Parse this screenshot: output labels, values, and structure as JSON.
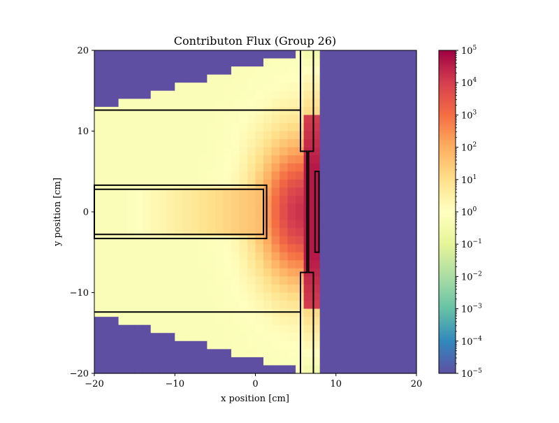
{
  "chart_data": {
    "type": "heatmap",
    "title": "Contributon Flux (Group 26)",
    "xlabel": "x position [cm]",
    "ylabel": "y position [cm]",
    "xlim": [
      -20,
      20
    ],
    "ylim": [
      -20,
      20
    ],
    "x_ticks": [
      -20,
      -10,
      0,
      10,
      20
    ],
    "y_ticks": [
      -20,
      -10,
      0,
      10,
      20
    ],
    "x_tick_labels": [
      "−20",
      "−10",
      "0",
      "10",
      "20"
    ],
    "y_tick_labels": [
      "−20",
      "−10",
      "0",
      "10",
      "20"
    ],
    "grid": "40x40 cells, 1 cm pitch",
    "colormap": "Spectral_r",
    "colormap_stops": [
      "#5e4fa2",
      "#3288bd",
      "#66c2a5",
      "#abdda4",
      "#e6f598",
      "#ffffbf",
      "#fee08b",
      "#fdae61",
      "#f46d43",
      "#d53e4f",
      "#9e0142"
    ],
    "scale": "log",
    "colorbar": {
      "min_exponent": -5,
      "max_exponent": 5,
      "labels": [
        {
          "base": "10",
          "exp": "5",
          "exponent": 5
        },
        {
          "base": "10",
          "exp": "4",
          "exponent": 4
        },
        {
          "base": "10",
          "exp": "3",
          "exponent": 3
        },
        {
          "base": "10",
          "exp": "2",
          "exponent": 2
        },
        {
          "base": "10",
          "exp": "1",
          "exponent": 1
        },
        {
          "base": "10",
          "exp": "0",
          "exponent": 0
        },
        {
          "base": "10",
          "exp": "−1",
          "exponent": -1
        },
        {
          "base": "10",
          "exp": "−2",
          "exponent": -2
        },
        {
          "base": "10",
          "exp": "−3",
          "exponent": -3
        },
        {
          "base": "10",
          "exp": "−4",
          "exponent": -4
        },
        {
          "base": "10",
          "exp": "−5",
          "exponent": -5
        }
      ]
    },
    "value_field_log10": {
      "void_region": "x > 8 cm: 1e-5",
      "upper_lower_corners": "1e-5",
      "hot_spot": "peak ~1e4.5 near x=5, y=0"
    },
    "outlines": [
      {
        "kind": "polyline",
        "points": [
          [
            -20,
            12.6
          ],
          [
            5.6,
            12.6
          ]
        ]
      },
      {
        "kind": "polyline",
        "points": [
          [
            -20,
            -12.4
          ],
          [
            5.6,
            -12.4
          ]
        ]
      },
      {
        "kind": "polygon",
        "points": [
          [
            -20,
            3.3
          ],
          [
            1.4,
            3.3
          ],
          [
            1.4,
            -3.3
          ],
          [
            -20,
            -3.3
          ]
        ]
      },
      {
        "kind": "polygon",
        "points": [
          [
            -20,
            2.8
          ],
          [
            1.0,
            2.8
          ],
          [
            1.0,
            -2.8
          ],
          [
            -20,
            -2.8
          ]
        ]
      },
      {
        "kind": "polyline",
        "points": [
          [
            5.6,
            20
          ],
          [
            5.6,
            7.5
          ],
          [
            6.4,
            7.5
          ],
          [
            6.4,
            -7.5
          ],
          [
            5.6,
            -7.5
          ],
          [
            5.6,
            -20
          ]
        ]
      },
      {
        "kind": "polyline",
        "points": [
          [
            7.2,
            20
          ],
          [
            7.2,
            7.5
          ],
          [
            6.6,
            7.5
          ],
          [
            6.6,
            -7.5
          ],
          [
            7.2,
            -7.5
          ],
          [
            7.2,
            -20
          ]
        ]
      },
      {
        "kind": "polygon",
        "points": [
          [
            7.4,
            5.0
          ],
          [
            7.9,
            5.0
          ],
          [
            7.9,
            -5.0
          ],
          [
            7.4,
            -5.0
          ]
        ]
      }
    ]
  }
}
